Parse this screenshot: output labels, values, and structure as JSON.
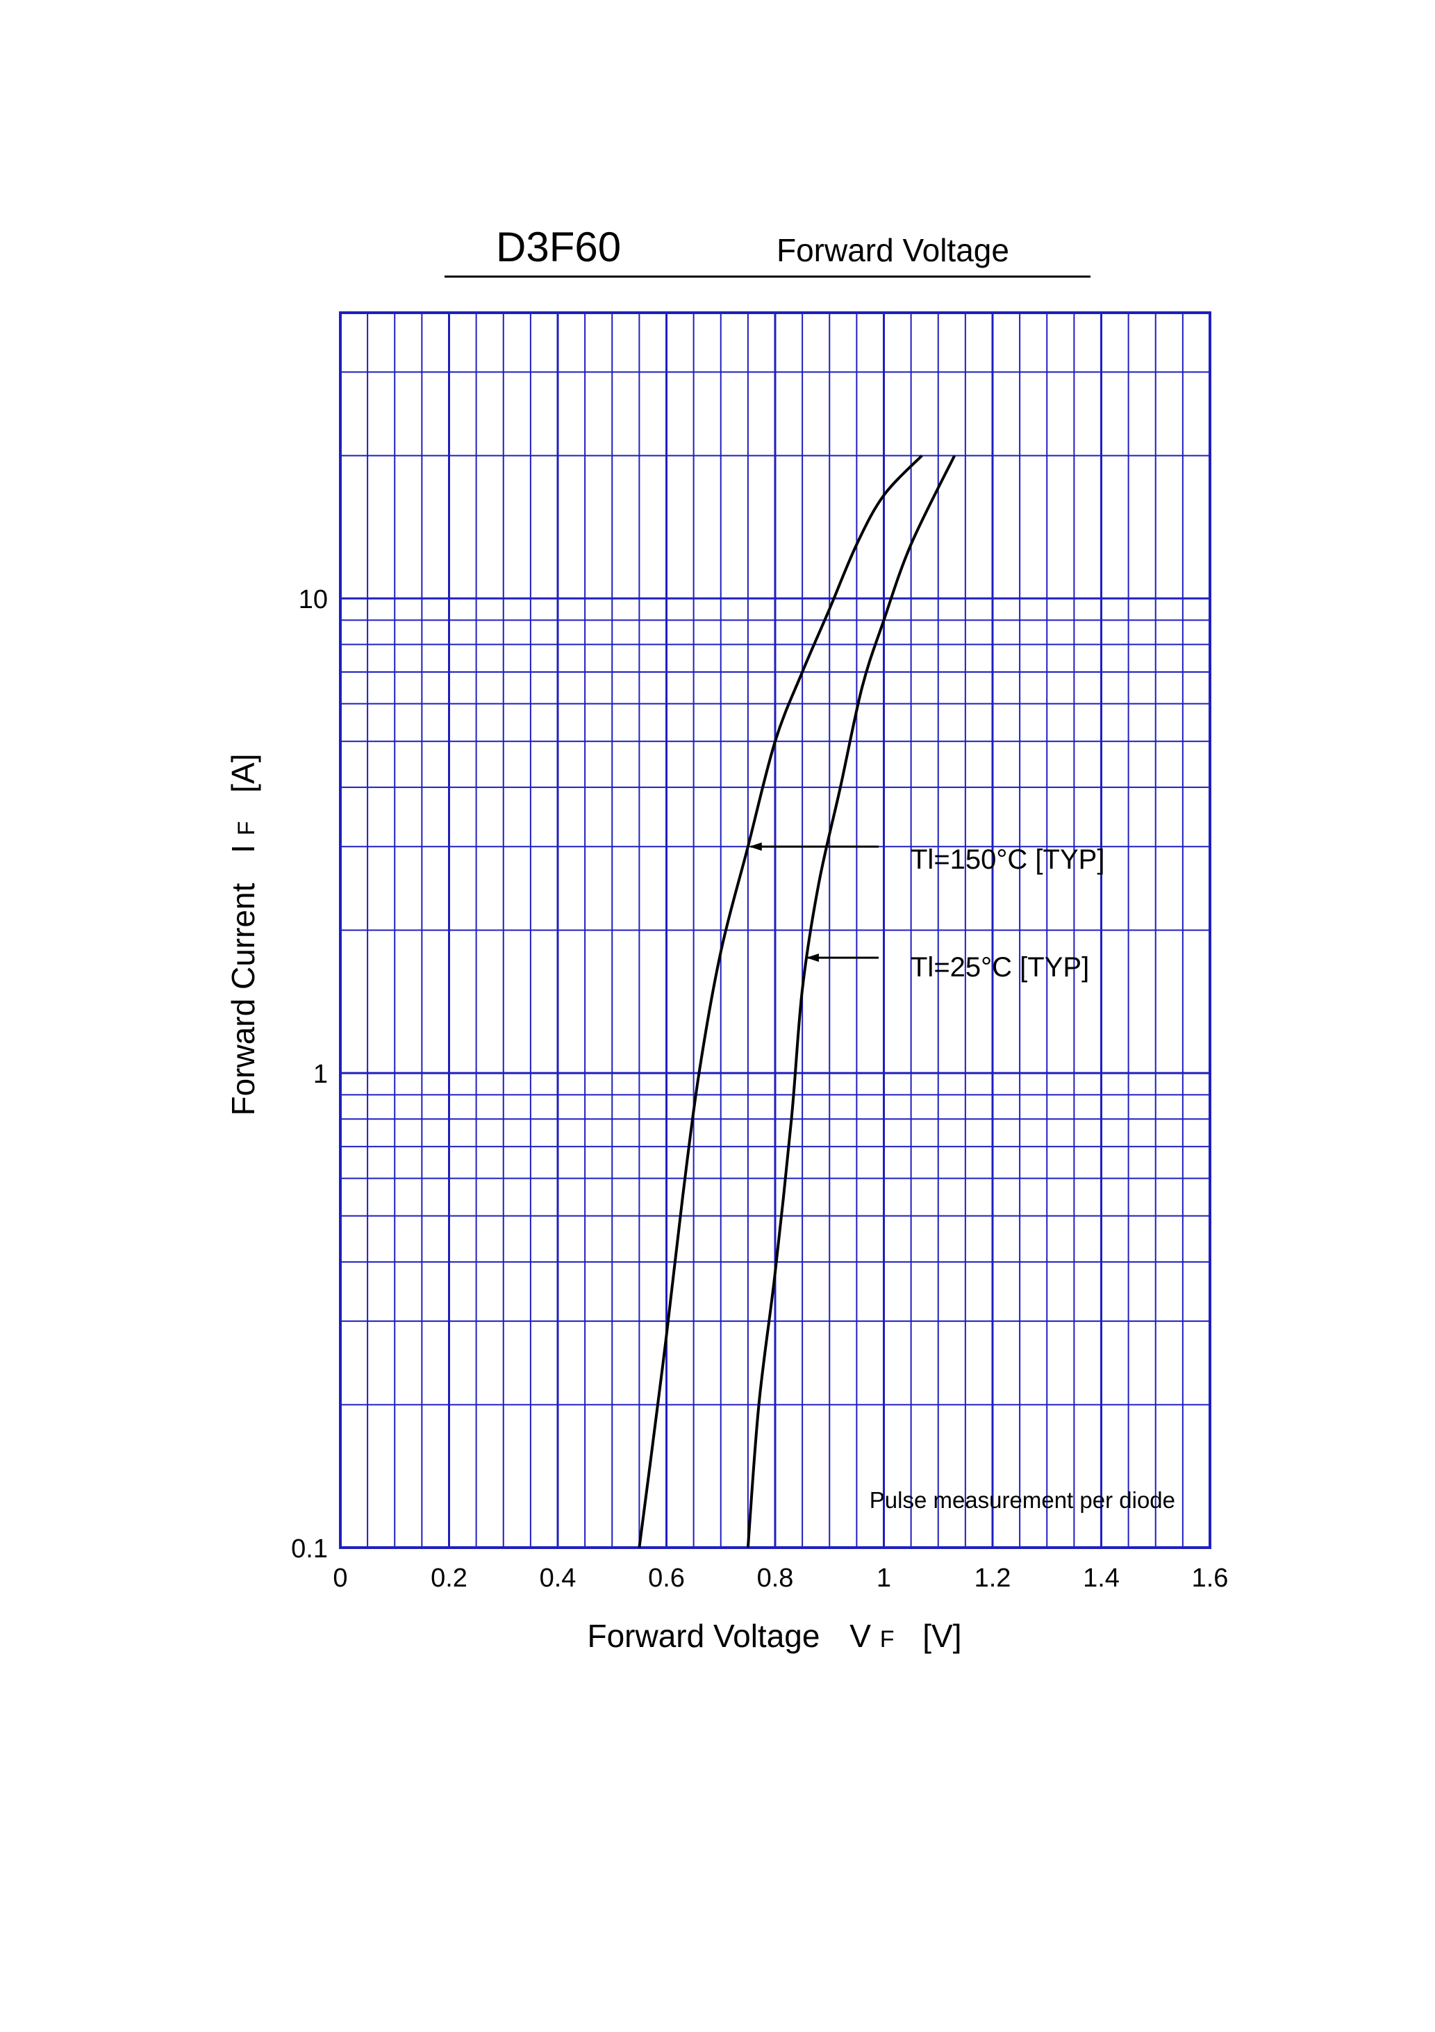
{
  "chart_data": {
    "type": "line",
    "title": "D3F60",
    "subtitle": "Forward Voltage",
    "xlabel": {
      "text": "Forward Voltage",
      "symbol": "V",
      "sub": "F",
      "unit": "[V]"
    },
    "ylabel": {
      "text": "Forward Current",
      "symbol": "I",
      "sub": "F",
      "unit": "[A]"
    },
    "x_scale": "linear",
    "y_scale": "log",
    "xlim": [
      0,
      1.6
    ],
    "ylim": [
      0.1,
      40
    ],
    "x_ticks": [
      0,
      0.2,
      0.4,
      0.6,
      0.8,
      1.0,
      1.2,
      1.4,
      1.6
    ],
    "x_tick_labels": [
      "0",
      "0.2",
      "0.4",
      "0.6",
      "0.8",
      "1",
      "1.2",
      "1.4",
      "1.6"
    ],
    "y_ticks": [
      0.1,
      1,
      10
    ],
    "y_tick_labels": [
      "0.1",
      "1",
      "10"
    ],
    "grid": true,
    "grid_color": "#1f1fbf",
    "curve_color": "#000000",
    "series": [
      {
        "name": "Tl=150°C [TYP]",
        "points": [
          [
            0.55,
            0.1
          ],
          [
            0.57,
            0.15
          ],
          [
            0.6,
            0.28
          ],
          [
            0.63,
            0.55
          ],
          [
            0.66,
            1.0
          ],
          [
            0.7,
            1.8
          ],
          [
            0.75,
            3.0
          ],
          [
            0.8,
            5.0
          ],
          [
            0.85,
            7.0
          ],
          [
            0.9,
            9.5
          ],
          [
            0.95,
            13.0
          ],
          [
            1.0,
            16.5
          ],
          [
            1.07,
            20.0
          ]
        ]
      },
      {
        "name": "Tl=25°C [TYP]",
        "points": [
          [
            0.75,
            0.1
          ],
          [
            0.77,
            0.2
          ],
          [
            0.8,
            0.38
          ],
          [
            0.83,
            0.8
          ],
          [
            0.85,
            1.5
          ],
          [
            0.88,
            2.5
          ],
          [
            0.92,
            4.0
          ],
          [
            0.96,
            6.5
          ],
          [
            1.0,
            9.0
          ],
          [
            1.05,
            13.0
          ],
          [
            1.13,
            20.0
          ]
        ]
      }
    ],
    "annotations": [
      {
        "text": "Tl=150°C [TYP]",
        "arrow_to": [
          0.755,
          3.0
        ]
      },
      {
        "text": "Tl=25°C [TYP]",
        "arrow_to": [
          0.86,
          1.75
        ]
      }
    ],
    "note": "Pulse measurement per diode"
  }
}
